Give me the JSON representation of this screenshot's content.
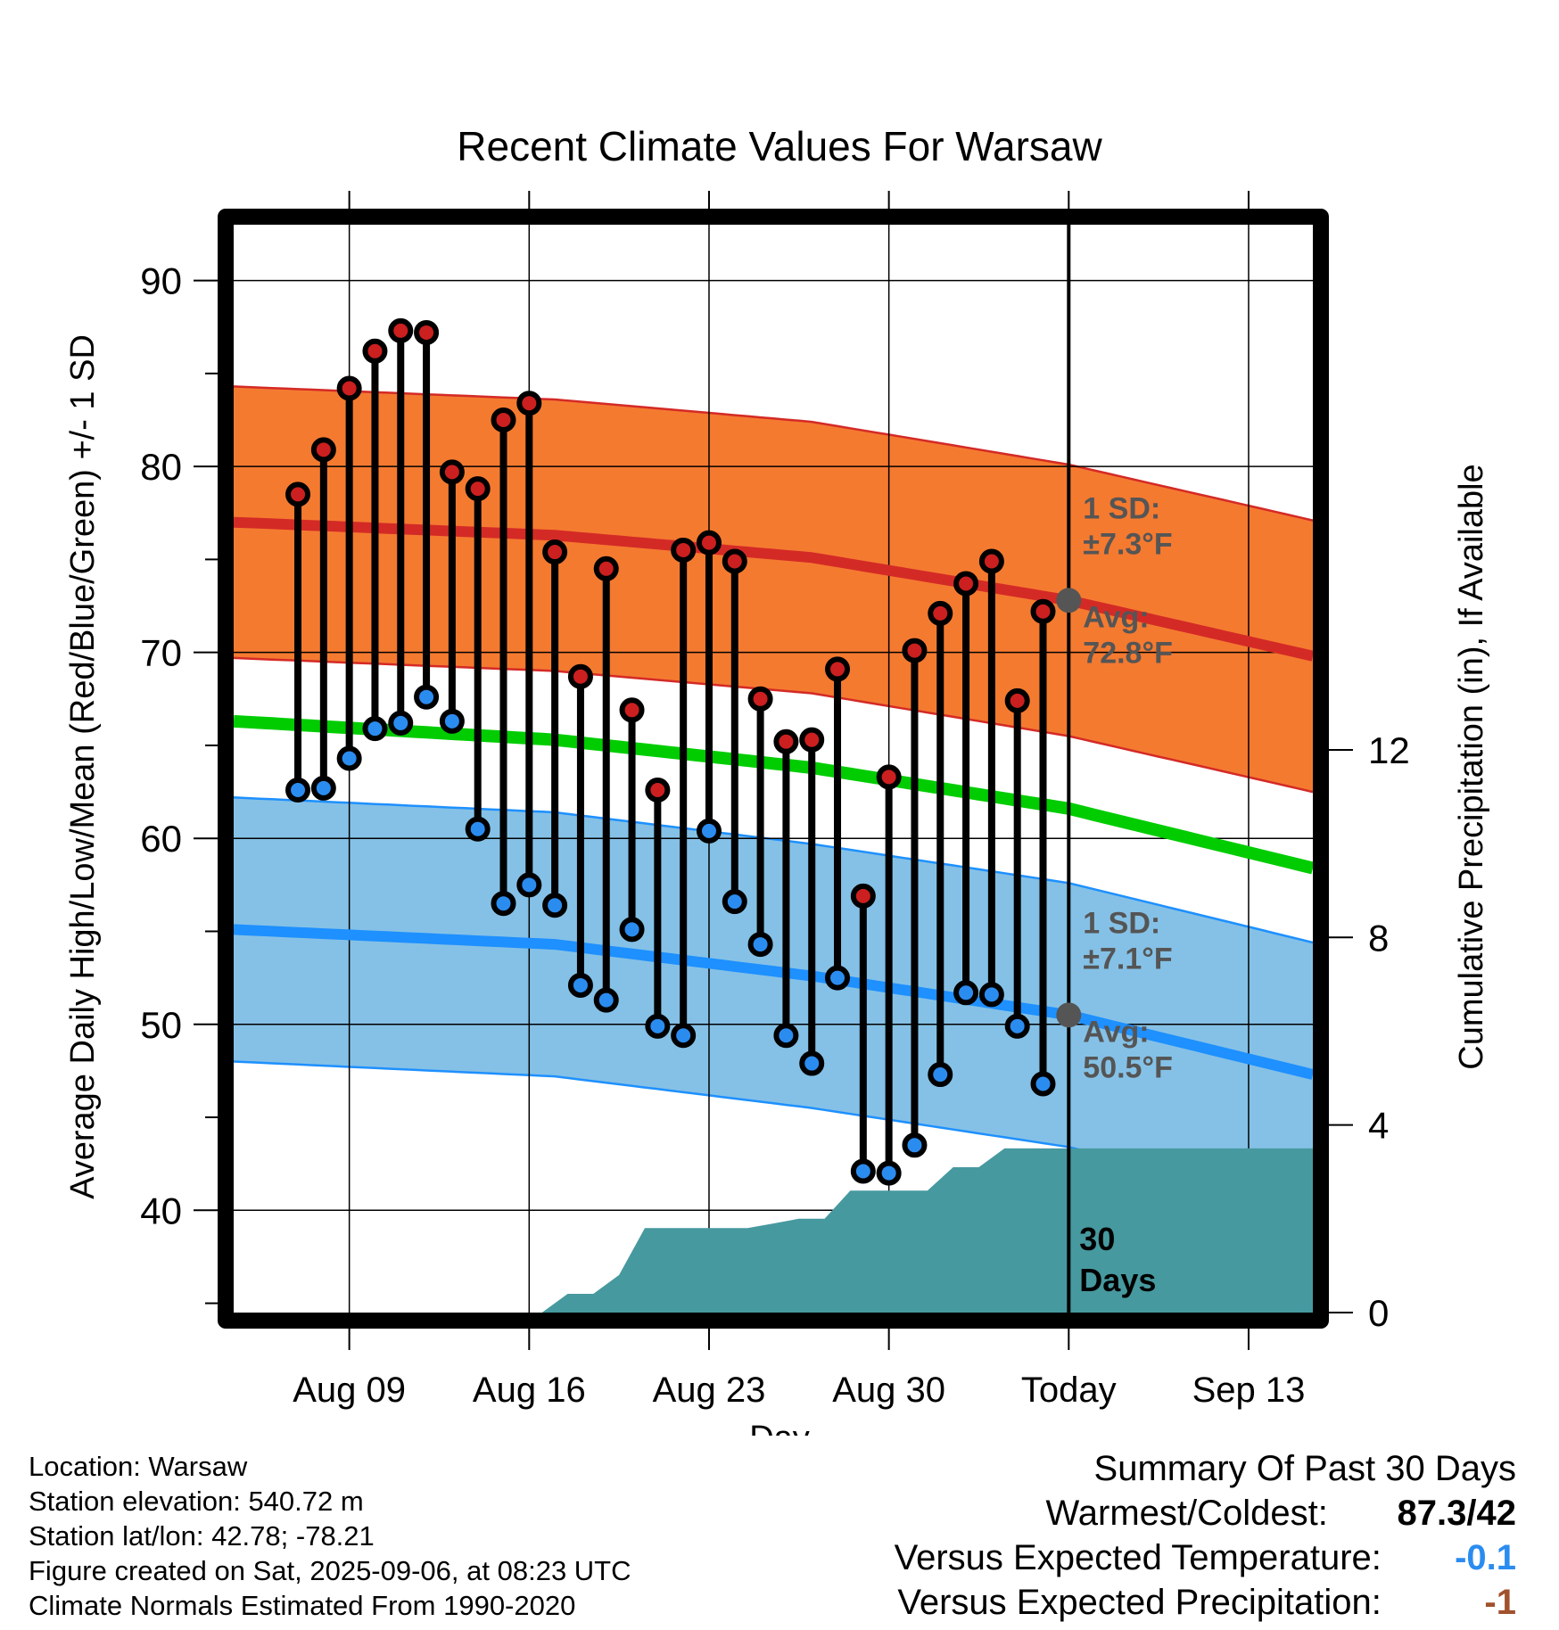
{
  "chart_data": {
    "type": "line",
    "title": "Recent Climate Values For Warsaw",
    "xlabel": "Day",
    "ylabel": "Average Daily High/Low/Mean (Red/Blue/Green) +/- 1 SD",
    "y2label": "Cumulative Precipitation (in), If Available",
    "ylim": [
      34.5,
      93
    ],
    "y2lim": [
      0,
      23.2
    ],
    "x_range_days": [
      -32.5,
      9.5
    ],
    "grid": true,
    "yticks": [
      40,
      50,
      60,
      70,
      80,
      90
    ],
    "y2ticks": [
      0,
      4,
      8,
      12
    ],
    "xticks": [
      {
        "day": -28,
        "label": "Aug 09"
      },
      {
        "day": -21,
        "label": "Aug 16"
      },
      {
        "day": -14,
        "label": "Aug 23"
      },
      {
        "day": -7,
        "label": "Aug 30"
      },
      {
        "day": 0,
        "label": "Today"
      },
      {
        "day": 7,
        "label": "Sep 13"
      }
    ],
    "daily_observations": [
      {
        "date": "Aug 07",
        "high": 78.5,
        "low": 62.6
      },
      {
        "date": "Aug 08",
        "high": 80.9,
        "low": 62.7
      },
      {
        "date": "Aug 09",
        "high": 84.2,
        "low": 64.3
      },
      {
        "date": "Aug 10",
        "high": 86.2,
        "low": 65.9
      },
      {
        "date": "Aug 11",
        "high": 87.3,
        "low": 66.2
      },
      {
        "date": "Aug 12",
        "high": 87.2,
        "low": 67.6
      },
      {
        "date": "Aug 13",
        "high": 79.7,
        "low": 66.3
      },
      {
        "date": "Aug 14",
        "high": 78.8,
        "low": 60.5
      },
      {
        "date": "Aug 15",
        "high": 82.5,
        "low": 56.5
      },
      {
        "date": "Aug 16",
        "high": 83.4,
        "low": 57.5
      },
      {
        "date": "Aug 17",
        "high": 75.4,
        "low": 56.4
      },
      {
        "date": "Aug 18",
        "high": 68.7,
        "low": 52.1
      },
      {
        "date": "Aug 19",
        "high": 74.5,
        "low": 51.3
      },
      {
        "date": "Aug 20",
        "high": 66.9,
        "low": 55.1
      },
      {
        "date": "Aug 21",
        "high": 62.6,
        "low": 49.9
      },
      {
        "date": "Aug 22",
        "high": 75.5,
        "low": 49.4
      },
      {
        "date": "Aug 23",
        "high": 75.9,
        "low": 60.4
      },
      {
        "date": "Aug 24",
        "high": 74.9,
        "low": 56.6
      },
      {
        "date": "Aug 25",
        "high": 67.5,
        "low": 54.3
      },
      {
        "date": "Aug 26",
        "high": 65.2,
        "low": 49.4
      },
      {
        "date": "Aug 27",
        "high": 65.3,
        "low": 47.9
      },
      {
        "date": "Aug 28",
        "high": 69.1,
        "low": 52.5
      },
      {
        "date": "Aug 29",
        "high": 56.9,
        "low": 42.1
      },
      {
        "date": "Aug 30",
        "high": 63.3,
        "low": 42.0
      },
      {
        "date": "Aug 31",
        "high": 70.1,
        "low": 43.5
      },
      {
        "date": "Sep 01",
        "high": 72.1,
        "low": 47.3
      },
      {
        "date": "Sep 02",
        "high": 73.7,
        "low": 51.7
      },
      {
        "date": "Sep 03",
        "high": 74.9,
        "low": 51.6
      },
      {
        "date": "Sep 04",
        "high": 67.4,
        "low": 49.9
      },
      {
        "date": "Sep 05",
        "high": 72.2,
        "low": 46.8
      }
    ],
    "normal_high_mean": [
      {
        "day": -32.5,
        "value": 77.0
      },
      {
        "day": -20,
        "value": 76.3
      },
      {
        "day": -10,
        "value": 75.1
      },
      {
        "day": 0,
        "value": 72.8
      },
      {
        "day": 9.5,
        "value": 69.8
      }
    ],
    "normal_high_sd": 7.3,
    "normal_mean": [
      {
        "day": -32.5,
        "value": 66.3
      },
      {
        "day": -20,
        "value": 65.3
      },
      {
        "day": -10,
        "value": 63.8
      },
      {
        "day": 0,
        "value": 61.6
      },
      {
        "day": 9.5,
        "value": 58.4
      }
    ],
    "normal_low_mean": [
      {
        "day": -32.5,
        "value": 55.1
      },
      {
        "day": -20,
        "value": 54.3
      },
      {
        "day": -10,
        "value": 52.6
      },
      {
        "day": 0,
        "value": 50.5
      },
      {
        "day": 9.5,
        "value": 47.3
      }
    ],
    "normal_low_sd": 7.1,
    "cumulative_precipitation": [
      {
        "day": -32.5,
        "value": 0
      },
      {
        "day": -20.5,
        "value": 0
      },
      {
        "day": -19.5,
        "value": 0.4
      },
      {
        "day": -18.5,
        "value": 0.4
      },
      {
        "day": -17.5,
        "value": 0.8
      },
      {
        "day": -16.5,
        "value": 1.8
      },
      {
        "day": -13.5,
        "value": 1.8
      },
      {
        "day": -12.5,
        "value": 1.8
      },
      {
        "day": -11.5,
        "value": 1.9
      },
      {
        "day": -10.5,
        "value": 2.0
      },
      {
        "day": -9.5,
        "value": 2.0
      },
      {
        "day": -8.5,
        "value": 2.6
      },
      {
        "day": -5.5,
        "value": 2.6
      },
      {
        "day": -4.5,
        "value": 3.1
      },
      {
        "day": -3.5,
        "value": 3.1
      },
      {
        "day": -2.5,
        "value": 3.5
      },
      {
        "day": 9.5,
        "value": 3.5
      }
    ],
    "annotations": {
      "high_sd_label": "1 SD:",
      "high_sd_value": "±7.3°F",
      "high_avg_label": "Avg:",
      "high_avg_value": "72.8°F",
      "low_sd_label": "1 SD:",
      "low_sd_value": "±7.1°F",
      "low_avg_label": "Avg:",
      "low_avg_value": "50.5°F",
      "window_count": "30",
      "window_unit": "Days"
    },
    "colors": {
      "high_band": "#f47a30",
      "high_line": "#d42a26",
      "mean_line": "#00cc00",
      "low_band": "#85c1e6",
      "low_line": "#1e90ff",
      "precip": "#46999f",
      "high_dot": "#cc1f1f",
      "low_dot": "#2b8cf0",
      "annotation_text": "#555555",
      "frame": "#000000"
    }
  },
  "footer": {
    "location": "Location: Warsaw",
    "elevation": "Station elevation: 540.72 m",
    "latlon": "Station lat/lon: 42.78; -78.21",
    "created": "Figure created on Sat, 2025-09-06, at 08:23 UTC",
    "normals": "Climate Normals Estimated From 1990-2020"
  },
  "summary": {
    "title": "Summary Of Past 30 Days",
    "warmest_label": "Warmest/Coldest:",
    "warmest_value": "87.3/42",
    "temp_label": "Versus Expected Temperature:",
    "temp_value": "-0.1",
    "temp_color": "#2b8cf0",
    "precip_label": "Versus Expected Precipitation:",
    "precip_value": "-1",
    "precip_color": "#a0522d"
  }
}
